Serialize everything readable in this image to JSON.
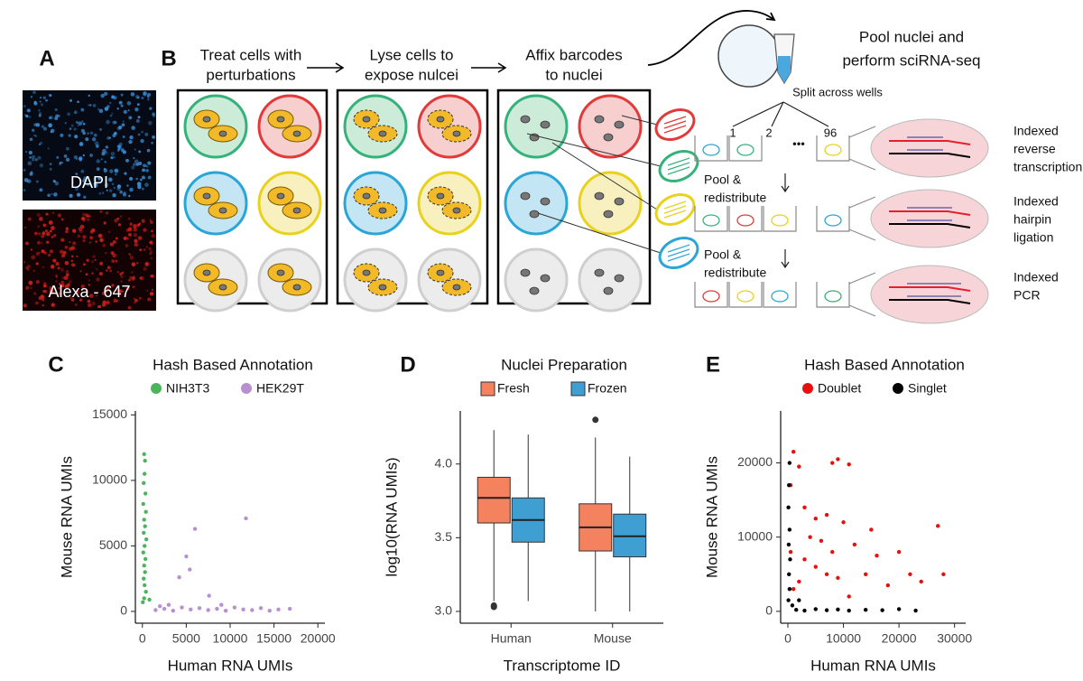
{
  "panel_labels": [
    "A",
    "B",
    "C",
    "D",
    "E"
  ],
  "microscopy": {
    "stains": [
      "DAPI",
      "Alexa - 647"
    ]
  },
  "workflow": {
    "steps": [
      [
        "Treat cells with",
        "perturbations"
      ],
      [
        "Lyse cells to",
        "expose nulcei"
      ],
      [
        "Affix barcodes",
        "to nuclei"
      ]
    ],
    "pool": [
      "Pool nuclei and",
      "perform sciRNA-seq"
    ],
    "split": "Split across wells",
    "wells": [
      "1",
      "2",
      "•••",
      "96"
    ],
    "redistribute": [
      [
        "Pool &",
        "redistribute"
      ],
      [
        "Pool &",
        "redistribute"
      ]
    ],
    "rounds": [
      [
        "Indexed",
        "reverse",
        "transcription"
      ],
      [
        "Indexed",
        "hairpin",
        "ligation"
      ],
      [
        "Indexed",
        "PCR"
      ]
    ]
  },
  "chart_data": [
    {
      "type": "scatter",
      "title": "Hash Based Annotation",
      "x_label": "Human RNA UMIs",
      "y_label": "Mouse RNA UMIs",
      "legend": "top",
      "xlim": [
        -800,
        20800
      ],
      "xticks": [
        0,
        5000,
        10000,
        15000,
        20000
      ],
      "ylim": [
        -900,
        15300
      ],
      "yticks": [
        0,
        5000,
        10000,
        15000
      ],
      "series": [
        {
          "name": "NIH3T3",
          "color": "#4cb55c",
          "x": [
            200,
            300,
            250,
            150,
            350,
            100,
            400,
            200,
            300,
            150,
            450,
            250,
            100,
            350,
            200,
            300,
            150,
            250,
            400,
            200,
            50,
            800
          ],
          "values": [
            12000,
            11500,
            10500,
            9800,
            9000,
            8200,
            7600,
            7000,
            6500,
            6000,
            5500,
            5000,
            4500,
            4000,
            3500,
            3000,
            2500,
            2000,
            1500,
            1000,
            700,
            900
          ]
        },
        {
          "name": "HEK29T",
          "color": "#b890d2",
          "x": [
            6000,
            11800,
            5000,
            5400,
            4200,
            7600,
            3000,
            1500,
            2500,
            3500,
            4500,
            5500,
            6500,
            7500,
            8500,
            9500,
            10500,
            11500,
            12500,
            13500,
            14500,
            15500,
            16800,
            2000,
            9000
          ],
          "values": [
            6300,
            7100,
            4200,
            3200,
            2600,
            1200,
            500,
            100,
            200,
            50,
            300,
            150,
            250,
            100,
            200,
            50,
            300,
            150,
            100,
            250,
            50,
            150,
            200,
            400,
            500
          ]
        }
      ]
    },
    {
      "type": "box",
      "title": "Nuclei Preparation",
      "x_label": "Transcriptome ID",
      "y_label": "log10(RNA UMIs)",
      "legend": "top",
      "categories": [
        "Human",
        "Mouse"
      ],
      "ylim": [
        2.92,
        4.36
      ],
      "yticks": [
        {
          "value": 3,
          "label": "3.0"
        },
        3.5,
        {
          "value": 4,
          "label": "4.0"
        }
      ],
      "series": [
        {
          "name": "Fresh",
          "color": "#f4825f",
          "values": [
            {
              "low": 3.07,
              "q1": 3.6,
              "median": 3.77,
              "q3": 3.91,
              "high": 4.23,
              "outliers": [
                3.03,
                3.04
              ]
            },
            {
              "low": 3.0,
              "q1": 3.41,
              "median": 3.57,
              "q3": 3.73,
              "high": 4.18,
              "outliers": [
                4.3
              ]
            }
          ]
        },
        {
          "name": "Frozen",
          "color": "#3f9fd3",
          "values": [
            {
              "low": 3.07,
              "q1": 3.47,
              "median": 3.62,
              "q3": 3.77,
              "high": 4.2,
              "outliers": []
            },
            {
              "low": 3.0,
              "q1": 3.37,
              "median": 3.51,
              "q3": 3.66,
              "high": 4.05,
              "outliers": []
            }
          ]
        }
      ]
    },
    {
      "type": "scatter",
      "title": "Hash Based Annotation",
      "x_label": "Human RNA UMIs",
      "y_label": "Mouse RNA UMIs",
      "legend": "top",
      "xlim": [
        -1300,
        32000
      ],
      "xticks": [
        0,
        10000,
        20000,
        30000
      ],
      "ylim": [
        -1600,
        27000
      ],
      "yticks": [
        0,
        10000,
        20000
      ],
      "series": [
        {
          "name": "Doublet",
          "color": "#e8100f",
          "x": [
            1000,
            2000,
            500,
            8000,
            9000,
            11000,
            3000,
            5000,
            7000,
            10000,
            4000,
            6000,
            8000,
            12000,
            15000,
            20000,
            3000,
            5000,
            7000,
            2000,
            9000,
            14000,
            18000,
            22000,
            24000,
            27000,
            28000,
            500,
            1000,
            11000,
            16000
          ],
          "values": [
            21500,
            19500,
            17000,
            20000,
            20500,
            19800,
            14000,
            12500,
            13000,
            12000,
            10000,
            9500,
            8000,
            9000,
            11000,
            8000,
            7000,
            6000,
            5000,
            4000,
            4500,
            5000,
            3500,
            5000,
            4000,
            11500,
            5000,
            8000,
            3000,
            2000,
            7500
          ]
        },
        {
          "name": "Singlet",
          "color": "#000000",
          "x": [
            300,
            200,
            100,
            300,
            150,
            400,
            200,
            300,
            100,
            1500,
            3000,
            5000,
            7000,
            9000,
            11000,
            14000,
            17000,
            20000,
            23000,
            800,
            2000
          ],
          "values": [
            20000,
            17000,
            14000,
            11000,
            9000,
            7000,
            5000,
            3000,
            1500,
            200,
            100,
            300,
            150,
            250,
            100,
            200,
            150,
            300,
            100,
            800,
            1500
          ]
        }
      ]
    }
  ]
}
